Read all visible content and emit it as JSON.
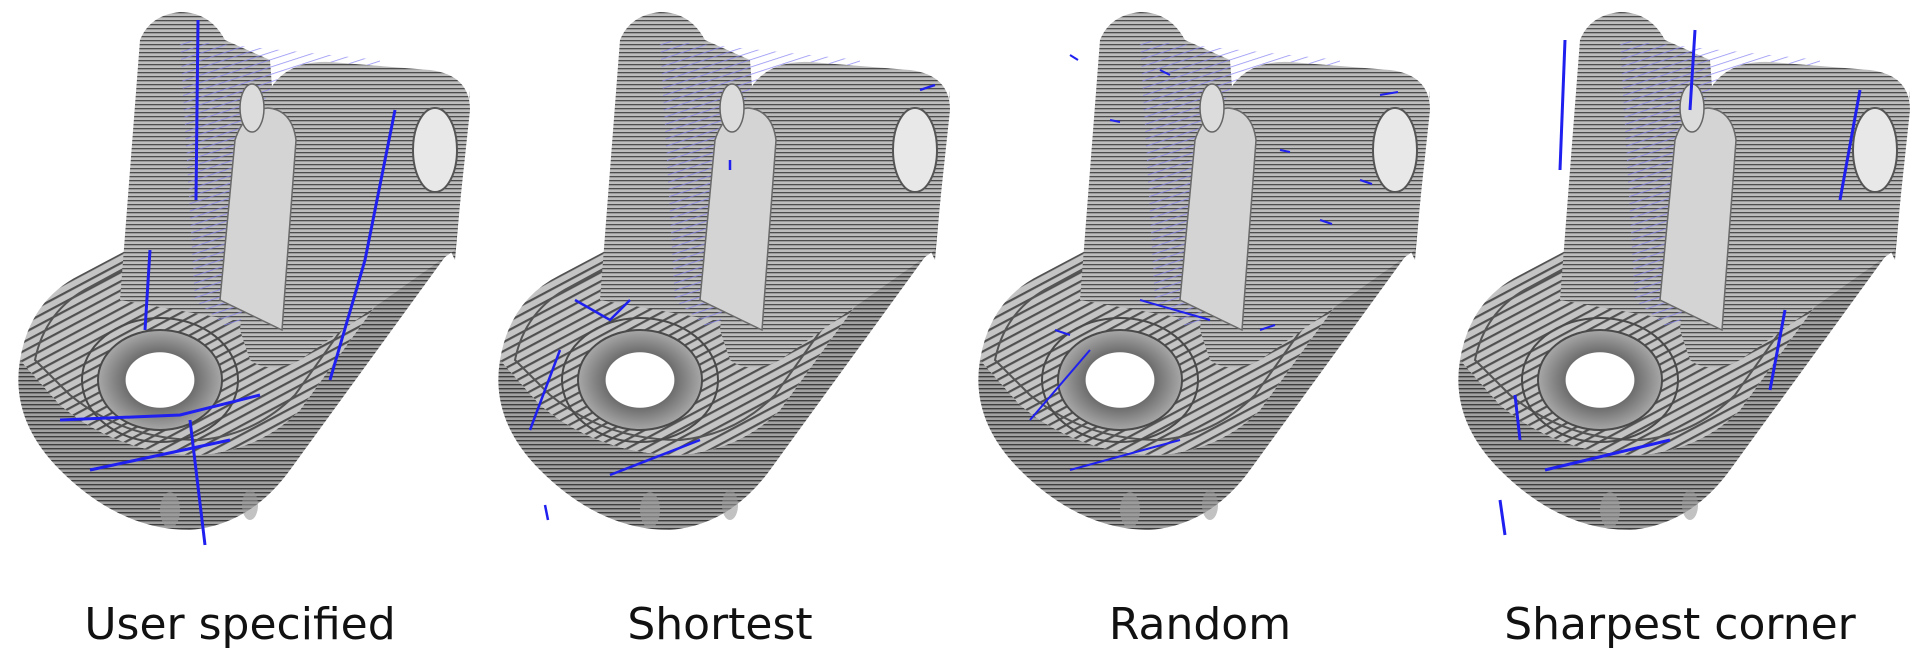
{
  "colors": {
    "part_fill": "#b9b9b9",
    "part_dark": "#8f8f8f",
    "layer_lines": "#4a4a4a",
    "travel_lines": "#8a86f2",
    "seam_marks": "#1f1ff0",
    "caption_text": "#111111"
  },
  "panels": [
    {
      "caption": "User specified"
    },
    {
      "caption": "Shortest"
    },
    {
      "caption": "Random"
    },
    {
      "caption": "Sharpest corner"
    }
  ]
}
